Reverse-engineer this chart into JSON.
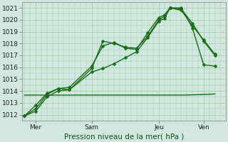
{
  "background_color": "#d0e8e0",
  "grid_color": "#a0c8a0",
  "line_color": "#1a6b1a",
  "xlabel": "Pression niveau de la mer( hPa )",
  "xtick_labels": [
    "Mer",
    "Sam",
    "Jeu",
    "Ven"
  ],
  "xtick_positions": [
    0.5,
    3.0,
    6.0,
    8.0
  ],
  "ylim": [
    1011.5,
    1021.5
  ],
  "xlim": [
    -0.1,
    9.0
  ],
  "yticks": [
    1012,
    1013,
    1014,
    1015,
    1016,
    1017,
    1018,
    1019,
    1020,
    1021
  ],
  "lines": [
    {
      "x": [
        0.0,
        0.5,
        1.0,
        1.5,
        2.0,
        3.0,
        3.5,
        4.0,
        4.5,
        5.0,
        5.5,
        6.0,
        6.25,
        6.5,
        7.0,
        7.5,
        8.0,
        8.5
      ],
      "y": [
        1011.9,
        1012.5,
        1013.7,
        1014.2,
        1014.1,
        1015.9,
        1018.2,
        1018.0,
        1017.7,
        1017.6,
        1018.6,
        1020.0,
        1020.3,
        1021.0,
        1020.8,
        1019.5,
        1018.3,
        1017.1
      ],
      "marker": "D",
      "ms": 2.5,
      "lw": 1.0
    },
    {
      "x": [
        0.0,
        0.5,
        1.0,
        1.5,
        2.0,
        3.0,
        3.5,
        4.0,
        4.5,
        5.0,
        5.5,
        6.0,
        6.25,
        6.5,
        7.0,
        7.5,
        8.0,
        8.5
      ],
      "y": [
        1011.9,
        1012.8,
        1013.8,
        1014.2,
        1014.3,
        1016.1,
        1017.8,
        1018.1,
        1017.6,
        1017.5,
        1018.9,
        1020.2,
        1020.4,
        1021.0,
        1020.9,
        1019.7,
        1018.2,
        1017.0
      ],
      "marker": "D",
      "ms": 2.5,
      "lw": 1.0
    },
    {
      "x": [
        0.0,
        0.5,
        1.0,
        1.5,
        2.0,
        3.0,
        3.5,
        4.0,
        4.5,
        5.0,
        5.5,
        6.0,
        6.25,
        6.5,
        7.0,
        7.5,
        8.0,
        8.5
      ],
      "y": [
        1011.9,
        1012.3,
        1013.5,
        1014.0,
        1014.1,
        1015.6,
        1015.9,
        1016.3,
        1016.8,
        1017.3,
        1018.5,
        1019.9,
        1020.1,
        1021.0,
        1021.0,
        1019.3,
        1016.2,
        1016.1
      ],
      "marker": "D",
      "ms": 2.5,
      "lw": 1.0
    },
    {
      "x": [
        0.0,
        1.0,
        2.0,
        3.0,
        4.0,
        5.0,
        6.0,
        7.0,
        8.0,
        8.5
      ],
      "y": [
        1013.65,
        1013.65,
        1013.65,
        1013.65,
        1013.65,
        1013.65,
        1013.65,
        1013.65,
        1013.7,
        1013.75
      ],
      "marker": null,
      "ms": 0,
      "lw": 1.0
    }
  ]
}
